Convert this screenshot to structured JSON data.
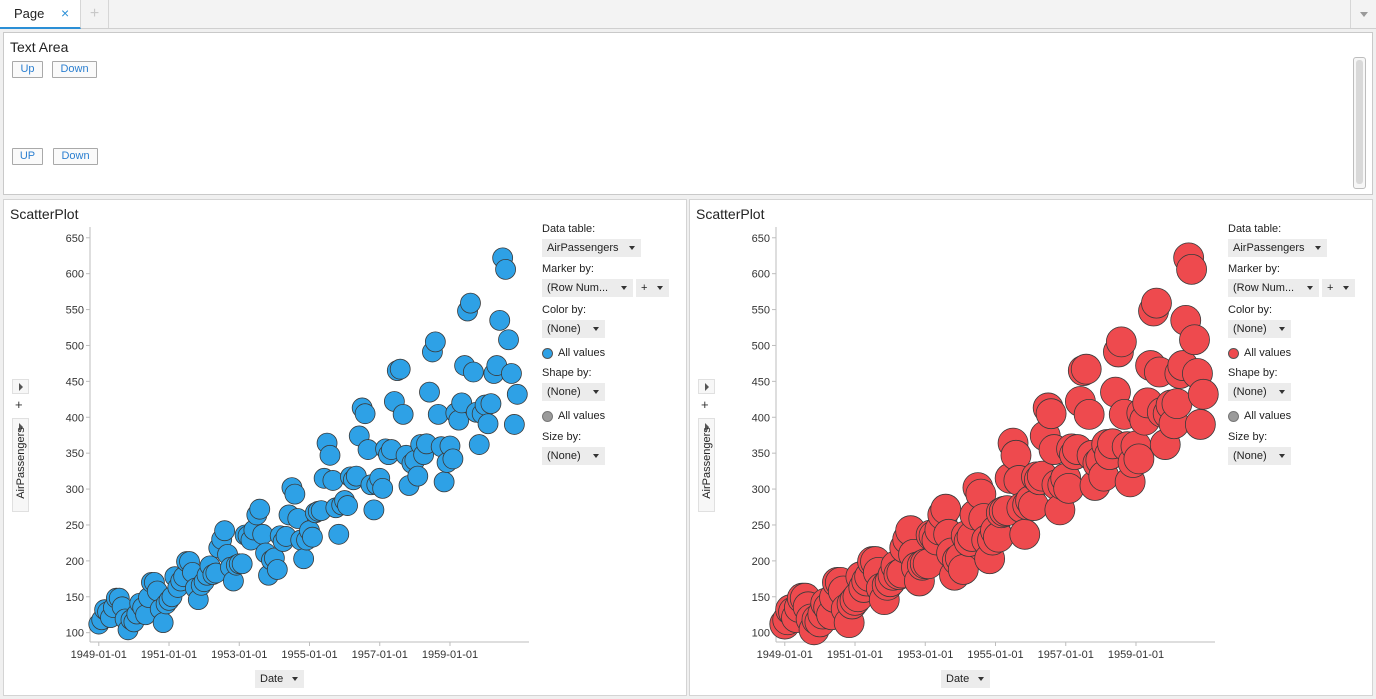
{
  "tabs": {
    "active_label": "Page",
    "close_glyph": "×",
    "add_glyph": "+"
  },
  "text_area": {
    "title": "Text Area",
    "buttons": [
      "Up",
      "Down",
      "UP",
      "Down"
    ]
  },
  "panels": [
    {
      "title": "ScatterPlot",
      "marker_color": "#2ea1e6",
      "controls": {
        "data_table_label": "Data table:",
        "data_table_value": "AirPassengers",
        "marker_by_label": "Marker by:",
        "marker_by_value": "(Row Num...",
        "marker_by_add": "+",
        "color_by_label": "Color by:",
        "color_by_value": "(None)",
        "color_legend": "All values",
        "shape_by_label": "Shape by:",
        "shape_by_value": "(None)",
        "shape_legend": "All values",
        "size_by_label": "Size by:",
        "size_by_value": "(None)"
      },
      "x_axis_selector": "Date",
      "y_axis_label": "AirPassengers"
    },
    {
      "title": "ScatterPlot",
      "marker_color": "#ee4a4e",
      "controls": {
        "data_table_label": "Data table:",
        "data_table_value": "AirPassengers",
        "marker_by_label": "Marker by:",
        "marker_by_value": "(Row Num...",
        "marker_by_add": "+",
        "color_by_label": "Color by:",
        "color_by_value": "(None)",
        "color_legend": "All values",
        "shape_by_label": "Shape by:",
        "shape_by_value": "(None)",
        "shape_legend": "All values",
        "size_by_label": "Size by:",
        "size_by_value": "(None)"
      },
      "x_axis_selector": "Date",
      "y_axis_label": "AirPassengers"
    }
  ],
  "chart_data": {
    "type": "scatter",
    "xlabel": "Date",
    "ylabel": "AirPassengers",
    "x_ticks": [
      "1949-01-01",
      "1951-01-01",
      "1953-01-01",
      "1955-01-01",
      "1957-01-01",
      "1959-01-01"
    ],
    "y_ticks": [
      100,
      150,
      200,
      250,
      300,
      350,
      400,
      450,
      500,
      550,
      600,
      650
    ],
    "ylim": [
      87,
      665
    ],
    "xlim": [
      "1948-10-01",
      "1961-04-01"
    ],
    "x_start": "1949-01",
    "x_step": "1 month",
    "values": [
      112,
      118,
      132,
      129,
      121,
      135,
      148,
      148,
      136,
      119,
      104,
      118,
      115,
      126,
      141,
      135,
      125,
      149,
      170,
      170,
      158,
      133,
      114,
      140,
      145,
      150,
      178,
      163,
      172,
      178,
      199,
      199,
      184,
      162,
      146,
      166,
      171,
      180,
      193,
      181,
      183,
      218,
      230,
      242,
      209,
      191,
      172,
      194,
      196,
      196,
      236,
      235,
      229,
      243,
      264,
      272,
      237,
      211,
      180,
      201,
      204,
      188,
      235,
      227,
      234,
      264,
      302,
      293,
      259,
      229,
      203,
      229,
      242,
      233,
      267,
      269,
      270,
      315,
      364,
      347,
      312,
      274,
      237,
      278,
      284,
      277,
      317,
      313,
      318,
      374,
      413,
      405,
      355,
      306,
      271,
      306,
      315,
      301,
      356,
      348,
      355,
      422,
      465,
      467,
      404,
      347,
      305,
      336,
      340,
      318,
      362,
      348,
      363,
      435,
      491,
      505,
      404,
      359,
      310,
      337,
      360,
      342,
      406,
      396,
      420,
      472,
      548,
      559,
      463,
      407,
      362,
      405,
      417,
      391,
      419,
      461,
      472,
      535,
      622,
      606,
      508,
      461,
      390,
      432
    ],
    "series": [
      {
        "marker_size": "small",
        "color": "#2ea1e6"
      },
      {
        "marker_size": "large",
        "color": "#ee4a4e"
      }
    ]
  }
}
